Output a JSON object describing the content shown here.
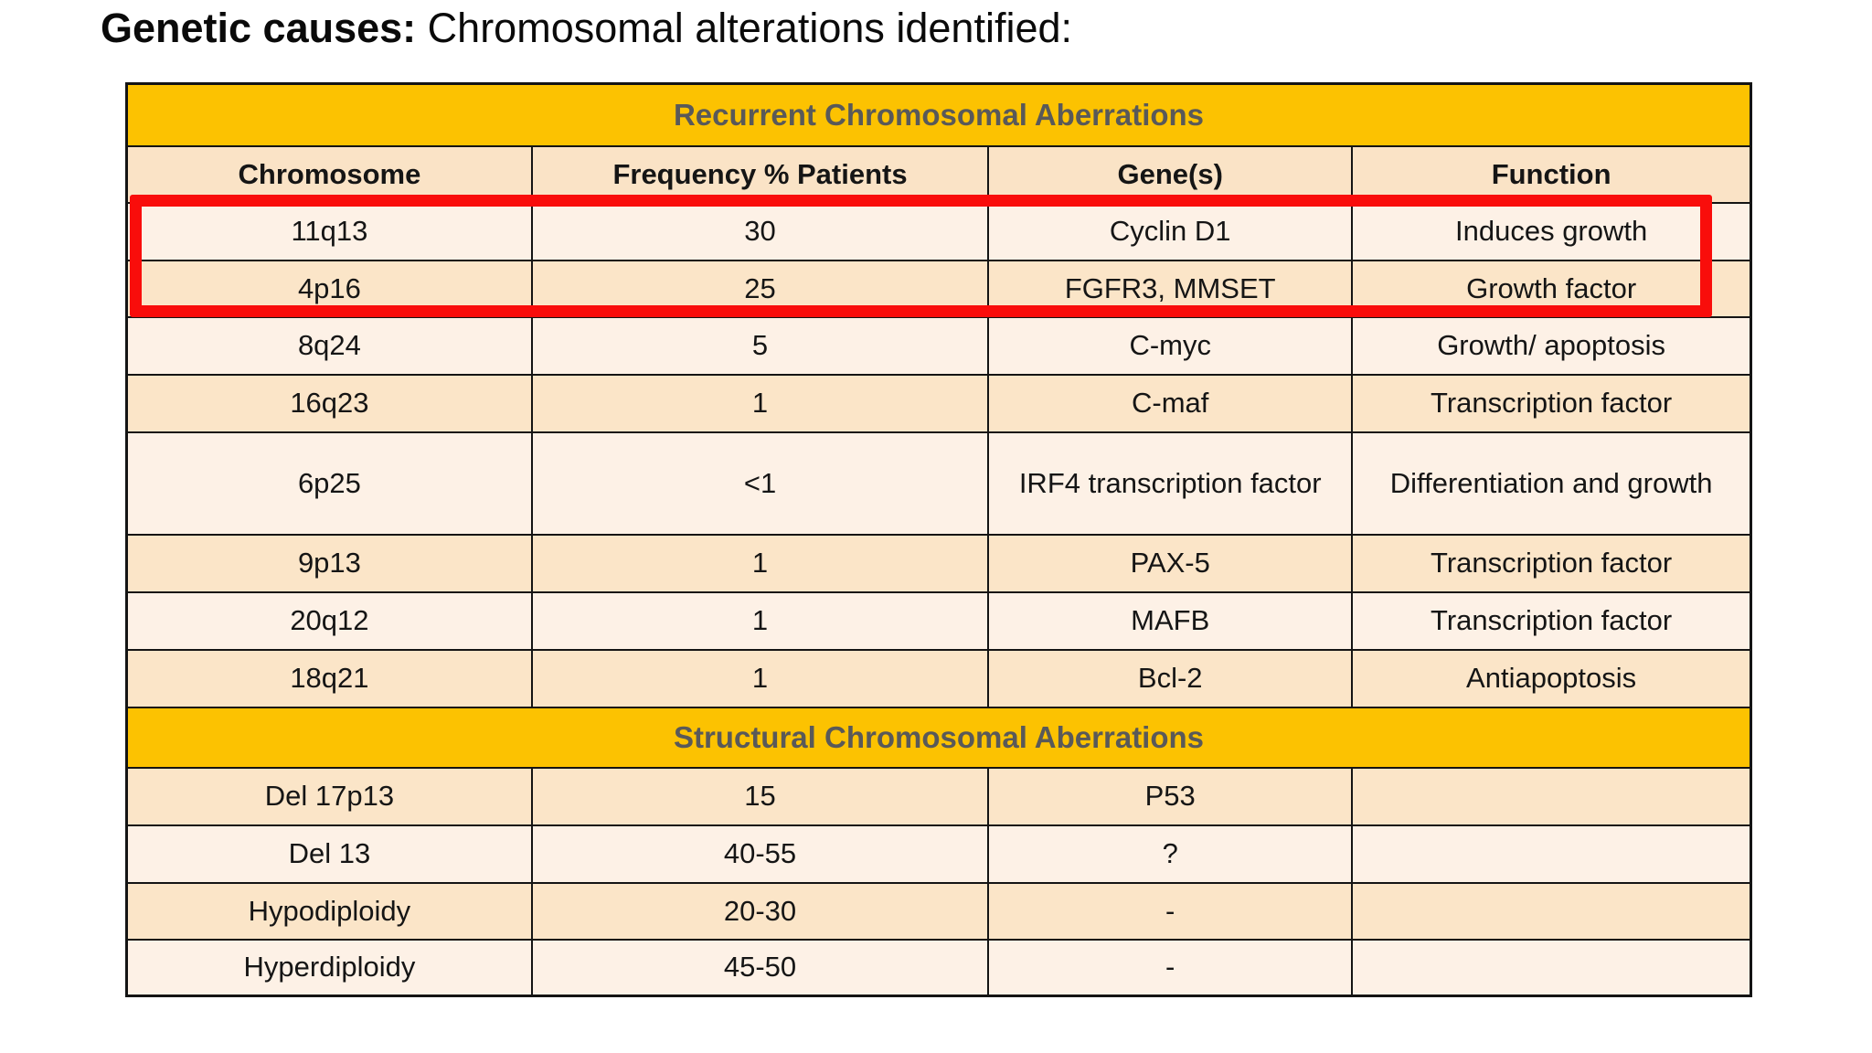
{
  "title": {
    "bold_part": "Genetic causes:",
    "regular_part": " Chromosomal alterations identified:"
  },
  "table": {
    "section1_header": "Recurrent Chromosomal Aberrations",
    "columns": [
      "Chromosome",
      "Frequency % Patients",
      "Gene(s)",
      "Function"
    ],
    "recurrent_rows": [
      {
        "chromosome": "11q13",
        "frequency": "30",
        "genes": "Cyclin D1",
        "function": "Induces growth"
      },
      {
        "chromosome": "4p16",
        "frequency": "25",
        "genes": "FGFR3, MMSET",
        "function": "Growth factor"
      },
      {
        "chromosome": "8q24",
        "frequency": "5",
        "genes": "C-myc",
        "function": "Growth/ apoptosis"
      },
      {
        "chromosome": "16q23",
        "frequency": "1",
        "genes": "C-maf",
        "function": "Transcription factor"
      },
      {
        "chromosome": "6p25",
        "frequency": "<1",
        "genes": "IRF4 transcription factor",
        "function": "Differentiation and growth"
      },
      {
        "chromosome": "9p13",
        "frequency": "1",
        "genes": "PAX-5",
        "function": "Transcription factor"
      },
      {
        "chromosome": "20q12",
        "frequency": "1",
        "genes": "MAFB",
        "function": "Transcription factor"
      },
      {
        "chromosome": "18q21",
        "frequency": "1",
        "genes": "Bcl-2",
        "function": "Antiapoptosis"
      }
    ],
    "section2_header": "Structural Chromosomal Aberrations",
    "structural_rows": [
      {
        "chromosome": "Del 17p13",
        "frequency": "15",
        "genes": "P53",
        "function": ""
      },
      {
        "chromosome": "Del 13",
        "frequency": "40-55",
        "genes": "?",
        "function": ""
      },
      {
        "chromosome": "Hypodiploidy",
        "frequency": "20-30",
        "genes": "-",
        "function": ""
      },
      {
        "chromosome": "Hyperdiploidy",
        "frequency": "45-50",
        "genes": "-",
        "function": ""
      }
    ]
  },
  "highlight": {
    "description": "red rectangle emphasizing rows 11q13 and 4p16",
    "color": "#f90d0b"
  },
  "colors": {
    "band_background": "#fcc201",
    "band_text": "#595959",
    "row_dark": "#fbe5c8",
    "row_light": "#fdf1e6",
    "border": "#141414"
  }
}
